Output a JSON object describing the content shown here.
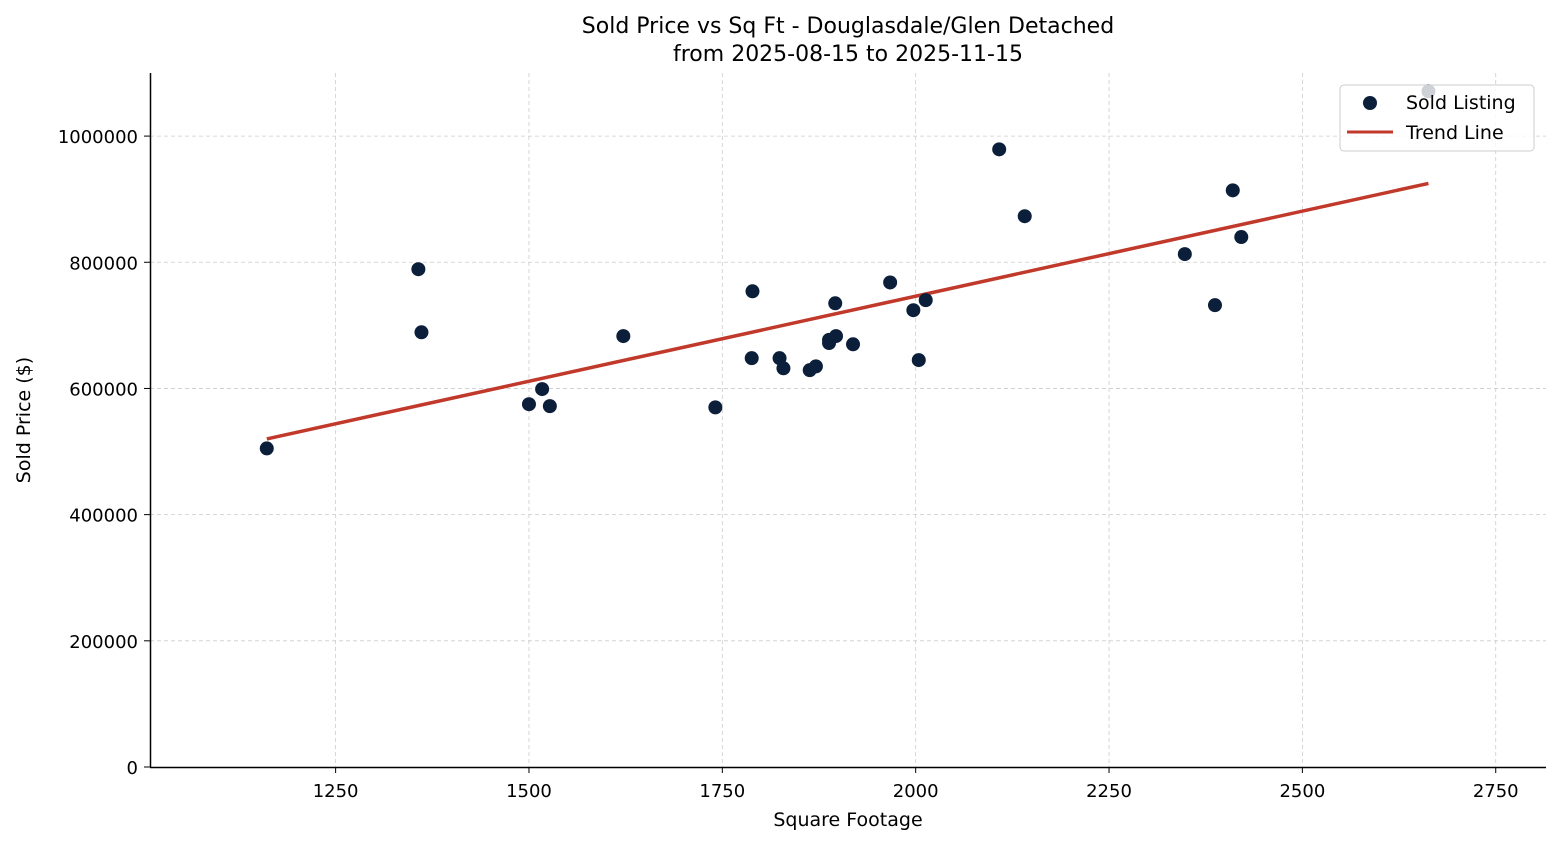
{
  "chart_data": {
    "type": "scatter",
    "title": "Sold Price vs Sq Ft - Douglasdale/Glen Detached",
    "subtitle": "from 2025-08-15 to 2025-11-15",
    "xlabel": "Square Footage",
    "ylabel": "Sold Price ($)",
    "xlim": [
      1010,
      2815
    ],
    "ylim": [
      0,
      1100000
    ],
    "xticks": [
      1250,
      1500,
      1750,
      2000,
      2250,
      2500,
      2750
    ],
    "yticks": [
      0,
      200000,
      400000,
      600000,
      800000,
      1000000
    ],
    "grid": true,
    "legend_position": "top-right",
    "series": [
      {
        "name": "Sold Listing",
        "type": "scatter",
        "color": "#0b1f3a",
        "points": [
          [
            1161,
            505000
          ],
          [
            1357,
            789000
          ],
          [
            1361,
            689000
          ],
          [
            1500,
            575000
          ],
          [
            1517,
            599000
          ],
          [
            1527,
            572000
          ],
          [
            1622,
            683000
          ],
          [
            1741,
            570000
          ],
          [
            1789,
            754000
          ],
          [
            1788,
            648000
          ],
          [
            1824,
            648000
          ],
          [
            1829,
            632000
          ],
          [
            1863,
            629000
          ],
          [
            1871,
            635000
          ],
          [
            1888,
            677000
          ],
          [
            1888,
            672000
          ],
          [
            1897,
            683000
          ],
          [
            1896,
            735000
          ],
          [
            1919,
            670000
          ],
          [
            1967,
            768000
          ],
          [
            1997,
            724000
          ],
          [
            2013,
            740000
          ],
          [
            2004,
            645000
          ],
          [
            2108,
            979000
          ],
          [
            2141,
            873000
          ],
          [
            2348,
            813000
          ],
          [
            2387,
            732000
          ],
          [
            2410,
            914000
          ],
          [
            2421,
            840000
          ],
          [
            2663,
            1071000
          ]
        ]
      },
      {
        "name": "Trend Line",
        "type": "line",
        "color": "#c0392b",
        "points": [
          [
            1161,
            520000
          ],
          [
            2663,
            925000
          ]
        ]
      }
    ]
  }
}
